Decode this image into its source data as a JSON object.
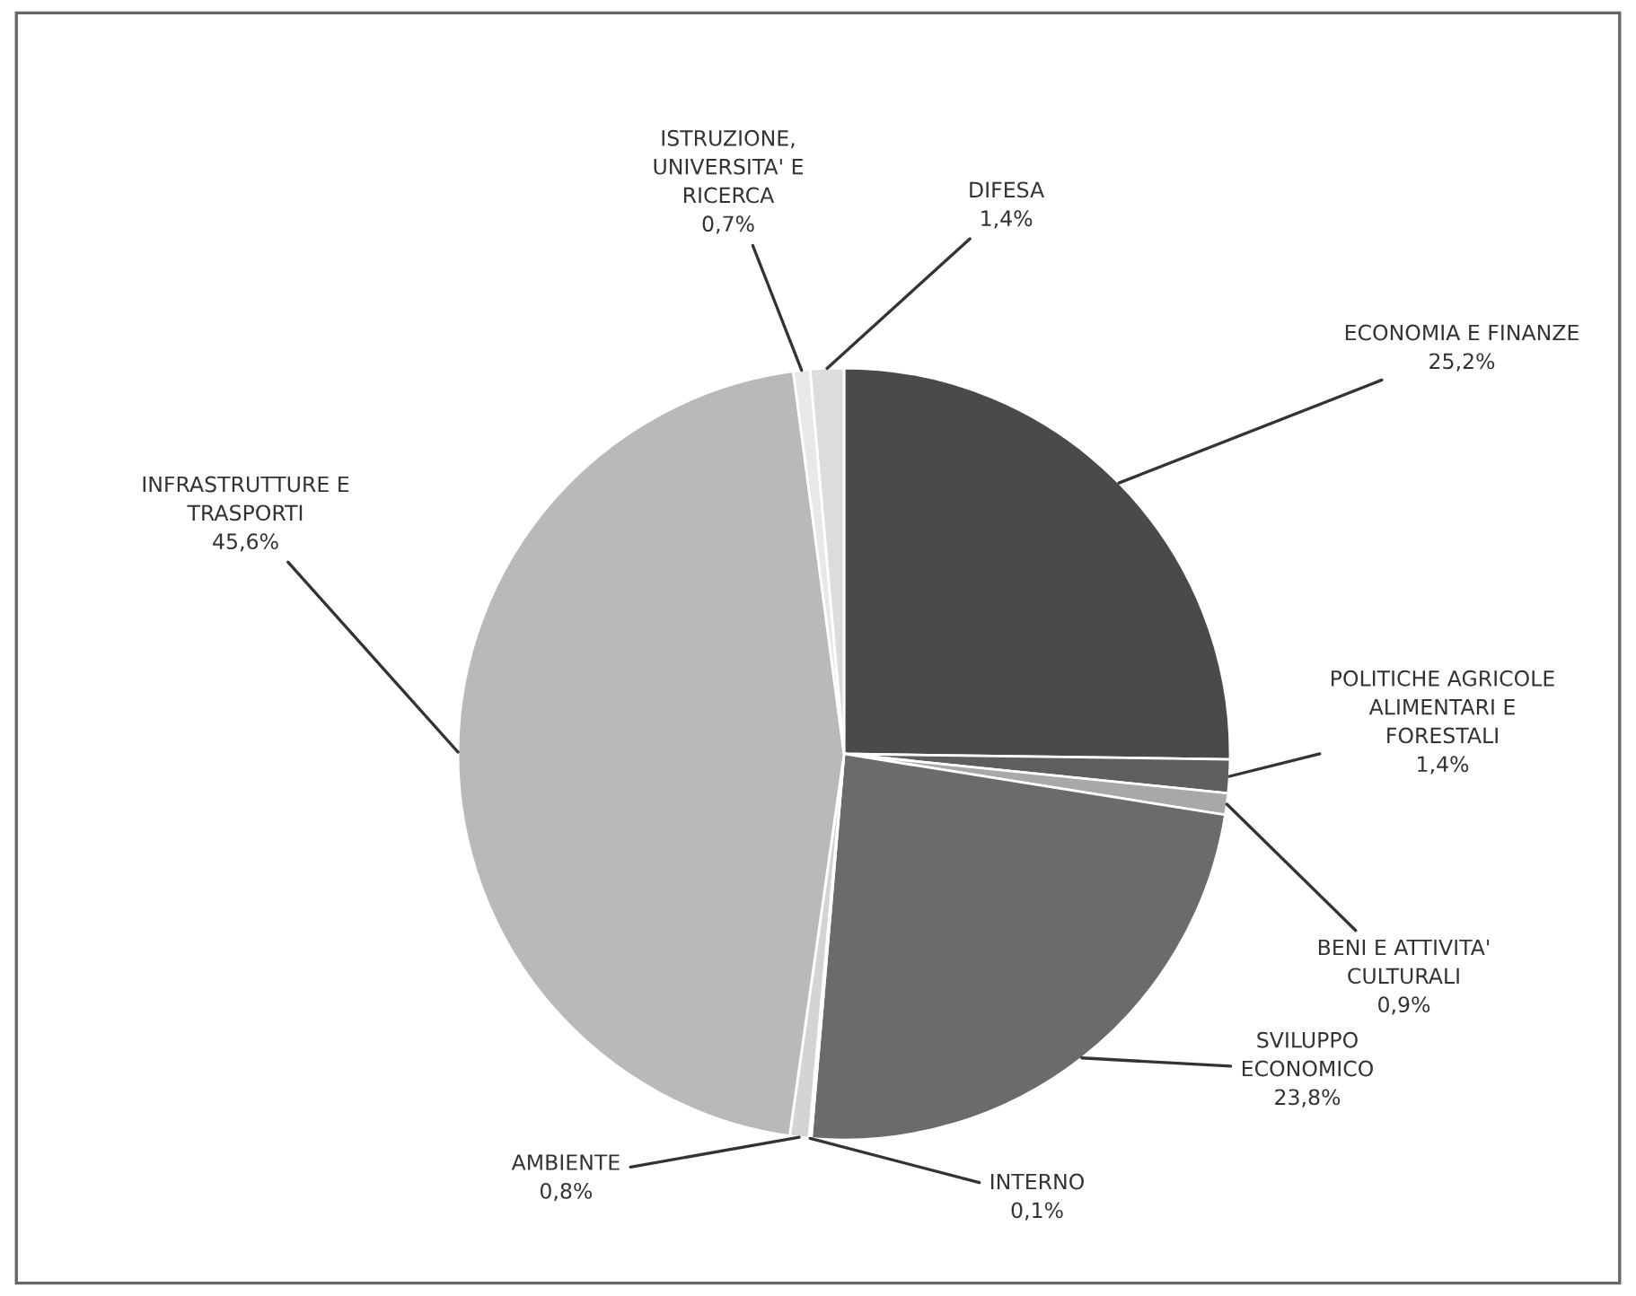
{
  "chart_data": {
    "type": "pie",
    "categories": [
      "ECONOMIA E FINANZE",
      "POLITICHE AGRICOLE\nALIMENTARI E\nFORESTALI",
      "BENI E ATTIVITA'\nCULTURALI",
      "SVILUPPO\nECONOMICO",
      "INTERNO",
      "AMBIENTE",
      "INFRASTRUTTURE E\nTRASPORTI",
      "ISTRUZIONE,\nUNIVERSITA' E\nRICERCA",
      "DIFESA"
    ],
    "values": [
      25.2,
      1.4,
      0.9,
      23.8,
      0.1,
      0.8,
      45.6,
      0.7,
      1.4
    ],
    "value_labels": [
      "25,2%",
      "1,4%",
      "0,9%",
      "23,8%",
      "0,1%",
      "0,8%",
      "45,6%",
      "0,7%",
      "1,4%"
    ],
    "colors": [
      "#4a4a4a",
      "#5e5e5e",
      "#a8a8a8",
      "#6b6b6b",
      "#f4f4f4",
      "#d4d4d4",
      "#b9b9b9",
      "#e8e8e8",
      "#dcdcdc"
    ]
  }
}
